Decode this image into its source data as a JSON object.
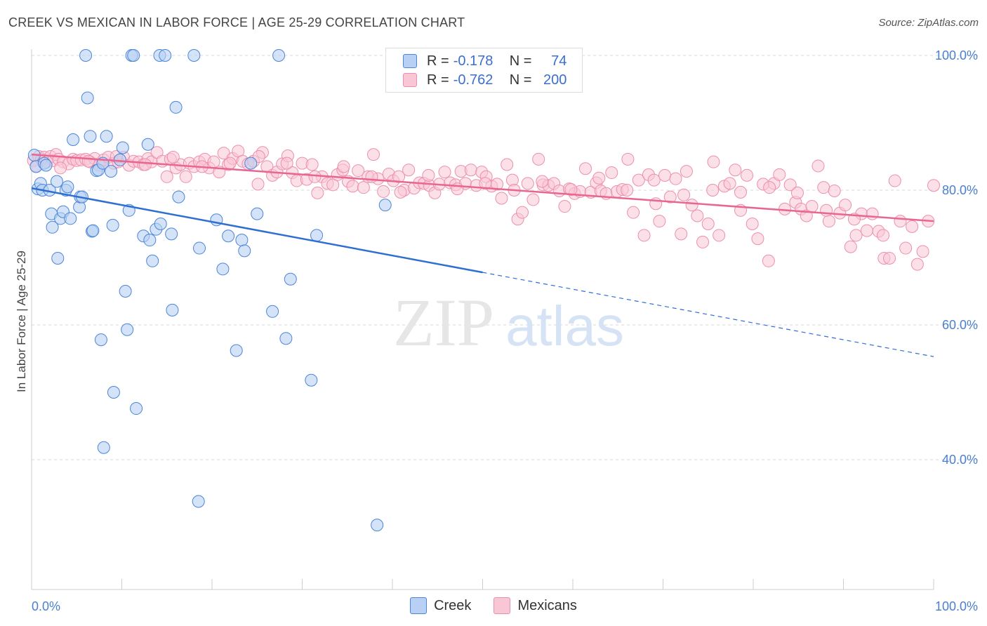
{
  "title": "CREEK VS MEXICAN IN LABOR FORCE | AGE 25-29 CORRELATION CHART",
  "source": "Source: ZipAtlas.com",
  "watermark": {
    "zip": "ZIP",
    "atlas": "atlas"
  },
  "legend": {
    "rows": [
      {
        "r_label": "R =",
        "r_value": "-0.178",
        "n_label": "N =",
        "n_value": "74"
      },
      {
        "r_label": "R =",
        "r_value": "-0.762",
        "n_label": "N =",
        "n_value": "200"
      }
    ]
  },
  "colors": {
    "creek_fill": "#b7d0f3",
    "creek_stroke": "#4a86d8",
    "creek_line": "#2f6fd1",
    "mex_fill": "#f9c6d6",
    "mex_stroke": "#ec8fae",
    "mex_line": "#e8668f",
    "tick_label": "#4a7fd0",
    "grid": "#d9d9d9"
  },
  "chart_data": {
    "type": "scatter",
    "ylabel": "In Labor Force | Age 25-29",
    "xlabel": "",
    "xlim": [
      0,
      100
    ],
    "ylim": [
      23,
      102
    ],
    "x_tick_labels": [
      "0.0%",
      "100.0%"
    ],
    "y_ticks": [
      40,
      60,
      80,
      100
    ],
    "y_tick_labels": [
      "40.0%",
      "60.0%",
      "80.0%",
      "100.0%"
    ],
    "legend_placement": "bottom-center",
    "grid": true,
    "series": [
      {
        "name": "Creek",
        "trend": {
          "x0": 0,
          "y0": 80.3,
          "x1": 50,
          "y1": 67.8,
          "dashed_to_x": 100,
          "dashed_to_y": 55.3
        },
        "points": [
          [
            0.3,
            85.2
          ],
          [
            0.5,
            83.5
          ],
          [
            0.7,
            80.2
          ],
          [
            1.0,
            81.0
          ],
          [
            1.2,
            80.0
          ],
          [
            1.4,
            84.0
          ],
          [
            1.6,
            83.7
          ],
          [
            2.0,
            80.0
          ],
          [
            2.2,
            76.5
          ],
          [
            2.3,
            74.5
          ],
          [
            2.8,
            81.3
          ],
          [
            3.2,
            75.8
          ],
          [
            3.5,
            76.8
          ],
          [
            3.8,
            80.0
          ],
          [
            4.0,
            80.5
          ],
          [
            4.3,
            75.8
          ],
          [
            4.6,
            87.5
          ],
          [
            5.3,
            77.5
          ],
          [
            5.4,
            79.0
          ],
          [
            5.6,
            79.0
          ],
          [
            6.0,
            100.0
          ],
          [
            6.2,
            93.7
          ],
          [
            6.5,
            88.0
          ],
          [
            6.7,
            73.9
          ],
          [
            6.8,
            74.0
          ],
          [
            7.2,
            82.9
          ],
          [
            7.4,
            83.0
          ],
          [
            7.9,
            84.0
          ],
          [
            8.3,
            88.0
          ],
          [
            8.8,
            82.8
          ],
          [
            9.0,
            74.8
          ],
          [
            9.8,
            84.5
          ],
          [
            10.1,
            86.3
          ],
          [
            10.4,
            65.0
          ],
          [
            10.6,
            59.3
          ],
          [
            10.8,
            77.0
          ],
          [
            11.1,
            100.0
          ],
          [
            11.3,
            100.0
          ],
          [
            12.4,
            73.2
          ],
          [
            12.9,
            86.8
          ],
          [
            13.1,
            72.6
          ],
          [
            13.8,
            74.2
          ],
          [
            14.2,
            100.0
          ],
          [
            14.3,
            75.0
          ],
          [
            14.8,
            100.0
          ],
          [
            15.5,
            73.5
          ],
          [
            15.6,
            62.2
          ],
          [
            16.0,
            92.3
          ],
          [
            16.3,
            79.0
          ],
          [
            18.0,
            100.0
          ],
          [
            18.6,
            71.4
          ],
          [
            20.5,
            75.6
          ],
          [
            21.2,
            68.3
          ],
          [
            21.8,
            73.2
          ],
          [
            23.3,
            72.6
          ],
          [
            23.6,
            71.0
          ],
          [
            24.3,
            84.0
          ],
          [
            25.0,
            76.5
          ],
          [
            27.4,
            100.0
          ],
          [
            28.7,
            66.8
          ],
          [
            31.0,
            51.8
          ],
          [
            31.6,
            73.3
          ],
          [
            38.3,
            30.3
          ],
          [
            39.2,
            77.8
          ],
          [
            18.5,
            33.8
          ],
          [
            8.0,
            41.8
          ],
          [
            9.1,
            50.0
          ],
          [
            11.6,
            47.6
          ],
          [
            7.7,
            57.8
          ],
          [
            2.9,
            69.9
          ],
          [
            13.4,
            69.5
          ],
          [
            26.7,
            62.0
          ],
          [
            28.2,
            58.0
          ],
          [
            22.7,
            56.2
          ]
        ]
      },
      {
        "name": "Mexicans",
        "trend": {
          "x0": 0,
          "y0": 85.3,
          "x1": 100,
          "y1": 75.4
        },
        "points": [
          [
            0.2,
            84.4
          ],
          [
            0.5,
            83.6
          ],
          [
            0.8,
            85.0
          ],
          [
            1.1,
            84.6
          ],
          [
            1.4,
            84.9
          ],
          [
            1.7,
            84.2
          ],
          [
            2.1,
            85.0
          ],
          [
            2.4,
            84.4
          ],
          [
            2.7,
            85.3
          ],
          [
            3.0,
            84.6
          ],
          [
            3.5,
            84.2
          ],
          [
            4.1,
            83.9
          ],
          [
            4.6,
            84.6
          ],
          [
            5.0,
            84.4
          ],
          [
            5.5,
            84.5
          ],
          [
            6.0,
            84.6
          ],
          [
            6.5,
            84.2
          ],
          [
            7.0,
            84.7
          ],
          [
            7.5,
            83.7
          ],
          [
            8.0,
            84.5
          ],
          [
            8.5,
            84.9
          ],
          [
            9.1,
            84.0
          ],
          [
            9.6,
            84.2
          ],
          [
            10.2,
            84.9
          ],
          [
            10.8,
            83.7
          ],
          [
            11.3,
            84.3
          ],
          [
            11.9,
            84.2
          ],
          [
            12.4,
            83.8
          ],
          [
            12.9,
            84.7
          ],
          [
            13.3,
            84.2
          ],
          [
            13.9,
            85.6
          ],
          [
            14.5,
            84.3
          ],
          [
            15.0,
            82.0
          ],
          [
            15.4,
            84.6
          ],
          [
            16.0,
            83.3
          ],
          [
            16.5,
            83.8
          ],
          [
            17.1,
            82.0
          ],
          [
            17.5,
            84.0
          ],
          [
            18.0,
            83.5
          ],
          [
            18.6,
            84.2
          ],
          [
            19.2,
            84.6
          ],
          [
            19.7,
            83.3
          ],
          [
            20.2,
            84.2
          ],
          [
            20.8,
            82.7
          ],
          [
            21.3,
            85.5
          ],
          [
            21.8,
            83.8
          ],
          [
            22.3,
            84.7
          ],
          [
            22.9,
            85.8
          ],
          [
            23.4,
            84.3
          ],
          [
            24.0,
            83.9
          ],
          [
            24.6,
            84.3
          ],
          [
            25.1,
            80.9
          ],
          [
            25.6,
            85.6
          ],
          [
            26.1,
            83.5
          ],
          [
            26.7,
            82.2
          ],
          [
            27.2,
            82.7
          ],
          [
            27.8,
            83.9
          ],
          [
            28.4,
            85.1
          ],
          [
            28.9,
            82.6
          ],
          [
            29.4,
            81.4
          ],
          [
            30.0,
            84.0
          ],
          [
            30.5,
            81.6
          ],
          [
            31.1,
            83.8
          ],
          [
            31.7,
            79.6
          ],
          [
            32.2,
            82.0
          ],
          [
            32.8,
            81.0
          ],
          [
            33.4,
            80.8
          ],
          [
            33.9,
            82.3
          ],
          [
            34.5,
            83.0
          ],
          [
            35.1,
            81.3
          ],
          [
            35.6,
            80.6
          ],
          [
            36.2,
            82.9
          ],
          [
            36.8,
            80.4
          ],
          [
            37.3,
            82.0
          ],
          [
            37.9,
            85.3
          ],
          [
            38.4,
            81.7
          ],
          [
            39.0,
            79.8
          ],
          [
            39.6,
            82.4
          ],
          [
            40.1,
            81.4
          ],
          [
            40.7,
            82.0
          ],
          [
            41.3,
            80.0
          ],
          [
            41.8,
            83.0
          ],
          [
            42.4,
            80.3
          ],
          [
            43.0,
            81.1
          ],
          [
            43.5,
            81.0
          ],
          [
            44.1,
            80.7
          ],
          [
            44.7,
            79.6
          ],
          [
            45.2,
            80.9
          ],
          [
            45.8,
            82.7
          ],
          [
            46.4,
            81.1
          ],
          [
            47.0,
            80.8
          ],
          [
            47.6,
            82.8
          ],
          [
            48.1,
            81.0
          ],
          [
            48.7,
            83.0
          ],
          [
            49.3,
            80.7
          ],
          [
            49.9,
            82.7
          ],
          [
            50.4,
            82.0
          ],
          [
            51.0,
            80.6
          ],
          [
            51.6,
            80.9
          ],
          [
            52.1,
            78.8
          ],
          [
            52.7,
            83.8
          ],
          [
            53.3,
            81.5
          ],
          [
            53.9,
            75.7
          ],
          [
            54.4,
            76.7
          ],
          [
            55.0,
            81.0
          ],
          [
            55.6,
            78.6
          ],
          [
            56.2,
            84.6
          ],
          [
            56.7,
            80.8
          ],
          [
            57.3,
            80.7
          ],
          [
            57.9,
            81.0
          ],
          [
            58.5,
            79.9
          ],
          [
            59.1,
            77.6
          ],
          [
            59.6,
            80.2
          ],
          [
            60.2,
            79.5
          ],
          [
            60.8,
            79.8
          ],
          [
            61.4,
            83.2
          ],
          [
            62.0,
            79.7
          ],
          [
            62.6,
            81.1
          ],
          [
            63.1,
            79.9
          ],
          [
            63.7,
            79.5
          ],
          [
            64.3,
            82.6
          ],
          [
            64.9,
            79.8
          ],
          [
            65.5,
            80.1
          ],
          [
            66.1,
            84.6
          ],
          [
            66.7,
            76.7
          ],
          [
            67.3,
            81.5
          ],
          [
            67.9,
            73.3
          ],
          [
            68.4,
            82.3
          ],
          [
            69.0,
            81.5
          ],
          [
            69.6,
            75.4
          ],
          [
            70.2,
            82.2
          ],
          [
            70.8,
            79.0
          ],
          [
            71.4,
            81.7
          ],
          [
            72.0,
            73.5
          ],
          [
            72.6,
            82.8
          ],
          [
            73.2,
            77.8
          ],
          [
            73.8,
            76.2
          ],
          [
            74.4,
            72.3
          ],
          [
            75.0,
            75.0
          ],
          [
            75.6,
            84.2
          ],
          [
            76.2,
            73.3
          ],
          [
            76.8,
            80.6
          ],
          [
            77.4,
            81.0
          ],
          [
            78.0,
            83.0
          ],
          [
            78.6,
            79.7
          ],
          [
            79.3,
            82.2
          ],
          [
            79.9,
            75.0
          ],
          [
            80.5,
            72.8
          ],
          [
            81.1,
            80.9
          ],
          [
            81.7,
            69.5
          ],
          [
            82.3,
            81.0
          ],
          [
            82.9,
            82.3
          ],
          [
            83.5,
            77.2
          ],
          [
            84.1,
            80.8
          ],
          [
            84.7,
            78.2
          ],
          [
            85.3,
            77.2
          ],
          [
            85.9,
            76.2
          ],
          [
            86.5,
            77.6
          ],
          [
            87.2,
            83.6
          ],
          [
            87.8,
            80.4
          ],
          [
            88.4,
            75.4
          ],
          [
            89.0,
            79.9
          ],
          [
            89.6,
            76.6
          ],
          [
            90.2,
            77.8
          ],
          [
            90.8,
            71.6
          ],
          [
            91.4,
            73.3
          ],
          [
            92.0,
            76.5
          ],
          [
            92.6,
            74.0
          ],
          [
            93.2,
            76.5
          ],
          [
            93.9,
            73.9
          ],
          [
            94.5,
            69.9
          ],
          [
            95.1,
            69.9
          ],
          [
            95.7,
            81.4
          ],
          [
            96.3,
            75.4
          ],
          [
            96.9,
            71.4
          ],
          [
            97.6,
            74.6
          ],
          [
            98.2,
            69.0
          ],
          [
            98.8,
            70.9
          ],
          [
            99.4,
            75.4
          ],
          [
            100.0,
            80.7
          ],
          [
            3.2,
            83.3
          ],
          [
            6.3,
            84.3
          ],
          [
            9.4,
            85.0
          ],
          [
            12.6,
            83.8
          ],
          [
            15.7,
            84.9
          ],
          [
            18.9,
            83.5
          ],
          [
            22.0,
            84.0
          ],
          [
            25.2,
            85.0
          ],
          [
            28.3,
            84.0
          ],
          [
            31.4,
            82.0
          ],
          [
            34.6,
            83.5
          ],
          [
            37.7,
            82.0
          ],
          [
            40.9,
            79.7
          ],
          [
            44.0,
            82.2
          ],
          [
            47.2,
            80.2
          ],
          [
            50.3,
            81.0
          ],
          [
            53.5,
            80.0
          ],
          [
            56.6,
            81.3
          ],
          [
            59.8,
            80.1
          ],
          [
            62.9,
            81.8
          ],
          [
            66.0,
            80.0
          ],
          [
            69.2,
            78.0
          ],
          [
            72.3,
            79.3
          ],
          [
            75.5,
            80.0
          ],
          [
            78.6,
            77.0
          ],
          [
            81.8,
            80.4
          ],
          [
            84.9,
            79.6
          ],
          [
            88.1,
            77.0
          ],
          [
            91.2,
            75.7
          ],
          [
            94.4,
            73.3
          ]
        ]
      }
    ]
  }
}
